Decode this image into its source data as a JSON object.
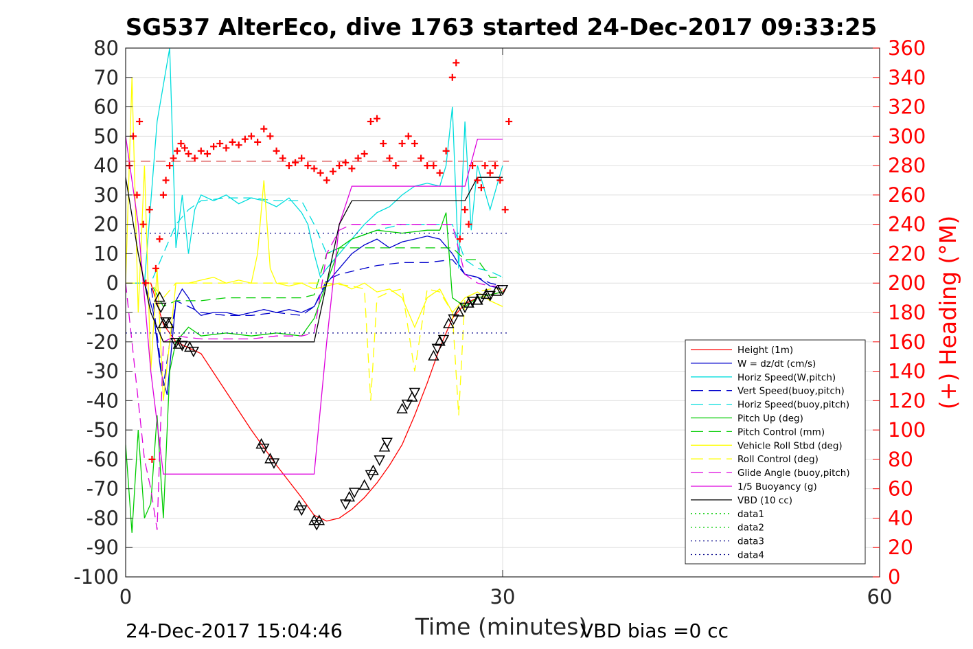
{
  "chart_data": {
    "type": "line",
    "title": "SG537 AlterEco, dive 1763 started 24-Dec-2017 09:33:25",
    "xlabel": "Time (minutes)",
    "ylabel": "",
    "ylabel_right": "(+) Heading (°M)",
    "xlim": [
      0,
      60
    ],
    "ylim": [
      -100,
      80
    ],
    "ylim_right": [
      0,
      360
    ],
    "xticks": [
      "0",
      "30",
      "60"
    ],
    "yticks": [
      "80",
      "70",
      "60",
      "50",
      "40",
      "30",
      "20",
      "10",
      "0",
      "-10",
      "-20",
      "-30",
      "-40",
      "-50",
      "-60",
      "-70",
      "-80",
      "-90",
      "-100"
    ],
    "yticks_right": [
      "360",
      "340",
      "320",
      "300",
      "280",
      "260",
      "240",
      "220",
      "200",
      "180",
      "160",
      "140",
      "120",
      "100",
      "80",
      "60",
      "40",
      "20",
      "0"
    ],
    "grid": true,
    "legend_position": "lower-right",
    "footer_left": "24-Dec-2017 15:04:46",
    "footer_right": "VBD bias =0 cc",
    "colors": {
      "axes": "#262626",
      "grid": "#dfdfdf",
      "heading": "#ff0000",
      "height": "#ff0000",
      "w": "#0000cc",
      "horiz_w": "#00dddd",
      "vert_buoy": "#0000cc",
      "horiz_buoy": "#00dddd",
      "pitch": "#00cc00",
      "pitch_control": "#00cc00",
      "roll": "#ffff00",
      "roll_control": "#ffff00",
      "glide": "#dd00dd",
      "buoyancy": "#dd00dd",
      "vbd": "#000000",
      "data_green": "#00cc00",
      "data_blue": "#000088"
    },
    "series": [
      {
        "name": "Height (1m)",
        "style": "solid",
        "color": "#ff0000",
        "x": [
          0,
          2,
          3,
          4,
          5,
          6,
          8,
          10,
          12,
          14,
          15,
          16,
          17,
          18,
          19,
          20,
          21,
          22,
          23,
          24,
          25,
          26,
          27,
          28,
          29,
          30,
          30.2
        ],
        "y": [
          0,
          0,
          -14,
          -20,
          -22,
          -24,
          -37,
          -50,
          -62,
          -73,
          -79,
          -81,
          -80,
          -77,
          -73,
          -68,
          -62,
          -55,
          -45,
          -34,
          -22,
          -12,
          -7,
          -5,
          -4,
          -3,
          -2
        ]
      },
      {
        "name": "W = dz/dt (cm/s)",
        "style": "solid",
        "color": "#0000cc",
        "x": [
          0,
          1.5,
          2.2,
          2.8,
          3.3,
          4,
          4.5,
          5,
          5.5,
          6,
          7,
          8,
          9,
          10,
          11,
          12,
          13,
          14,
          15,
          16,
          17,
          18,
          19,
          20,
          21,
          22,
          23,
          24,
          25,
          26,
          27,
          28,
          29,
          30
        ],
        "y": [
          0,
          0,
          -10,
          -30,
          -38,
          -6,
          -2,
          -5,
          -9,
          -11,
          -10,
          -10,
          -11,
          -10,
          -9,
          -10,
          -9,
          -10,
          -8,
          0,
          5,
          10,
          13,
          15,
          12,
          14,
          15,
          16,
          15,
          10,
          3,
          2,
          -1,
          -2
        ]
      },
      {
        "name": "Horiz Speed(W,pitch)",
        "style": "solid",
        "color": "#00dddd",
        "x": [
          0,
          1.5,
          2.5,
          3.5,
          4,
          4.5,
          5,
          5.5,
          6,
          7,
          8,
          9,
          10,
          11,
          12,
          13,
          14,
          14.5,
          15,
          15.5,
          16,
          17,
          18,
          19,
          20,
          21,
          22,
          23,
          24,
          25,
          25.5,
          26,
          26.5,
          27,
          27.5,
          28,
          29,
          30
        ],
        "y": [
          0,
          0,
          55,
          80,
          12,
          30,
          10,
          25,
          30,
          28,
          30,
          27,
          29,
          28,
          26,
          29,
          24,
          20,
          10,
          2,
          5,
          10,
          15,
          20,
          24,
          26,
          30,
          33,
          34,
          33,
          40,
          60,
          5,
          55,
          18,
          40,
          25,
          40
        ]
      },
      {
        "name": "Vert Speed(buoy,pitch)",
        "style": "dashed",
        "color": "#0000cc",
        "x": [
          0,
          2,
          3,
          4,
          5,
          6,
          8,
          10,
          12,
          14,
          15,
          16,
          17,
          18,
          19,
          20,
          22,
          24,
          26,
          27,
          28,
          29,
          30
        ],
        "y": [
          0,
          0,
          -35,
          -6,
          -8,
          -10,
          -11,
          -11,
          -10,
          -11,
          -8,
          1,
          3,
          4,
          5,
          6,
          7,
          7,
          8,
          3,
          2,
          0,
          -1
        ]
      },
      {
        "name": "Horiz Speed(buoy,pitch)",
        "style": "dashed",
        "color": "#00dddd",
        "x": [
          0,
          2,
          3,
          4,
          5,
          6,
          8,
          10,
          12,
          14,
          15,
          16,
          17,
          18,
          20,
          22,
          24,
          26,
          27,
          28,
          29,
          30
        ],
        "y": [
          0,
          0,
          10,
          20,
          25,
          28,
          29,
          29,
          28,
          28,
          20,
          10,
          12,
          15,
          18,
          20,
          20,
          20,
          8,
          5,
          4,
          2
        ]
      },
      {
        "name": "Pitch Up (deg)",
        "style": "solid",
        "color": "#00cc00",
        "x": [
          0,
          0.5,
          1,
          1.5,
          2,
          2.5,
          3,
          3.5,
          4,
          5,
          6,
          8,
          10,
          12,
          14,
          15,
          16,
          17,
          18,
          20,
          22,
          24,
          25,
          25.5,
          26,
          27,
          28,
          29,
          30
        ],
        "y": [
          -55,
          -85,
          -50,
          -80,
          -75,
          -45,
          -80,
          -30,
          -20,
          -15,
          -18,
          -17,
          -18,
          -17,
          -18,
          -12,
          0,
          12,
          15,
          18,
          17,
          18,
          18,
          24,
          -5,
          -8,
          -5,
          -4,
          -3
        ]
      },
      {
        "name": "Pitch Control (mm)",
        "style": "dashed",
        "color": "#00cc00",
        "x": [
          0,
          2,
          3,
          4,
          6,
          8,
          10,
          12,
          14,
          15,
          16,
          17,
          18,
          20,
          22,
          24,
          26,
          27,
          28,
          29,
          30
        ],
        "y": [
          0,
          0,
          -8,
          -6,
          -6,
          -5,
          -5,
          -5,
          -5,
          -4,
          10,
          12,
          12,
          12,
          12,
          12,
          12,
          8,
          8,
          2,
          2
        ]
      },
      {
        "name": "Vehicle Roll Stbd (deg)",
        "style": "solid",
        "color": "#ffff00",
        "x": [
          0,
          0.5,
          1,
          1.5,
          2,
          2.5,
          3,
          3.5,
          4,
          5,
          6,
          7,
          8,
          9,
          10,
          10.5,
          11,
          11.5,
          12,
          13,
          14,
          15,
          16,
          17,
          18,
          19,
          20,
          21,
          22,
          23,
          24,
          25,
          26,
          27,
          28,
          29,
          30
        ],
        "y": [
          0,
          70,
          -10,
          40,
          -30,
          5,
          -40,
          -20,
          0,
          0,
          1,
          2,
          0,
          1,
          0,
          10,
          35,
          5,
          0,
          -1,
          0,
          -2,
          -1,
          0,
          -2,
          0,
          -3,
          -2,
          -5,
          -15,
          -5,
          -2,
          -10,
          -5,
          -3,
          -6,
          -8
        ]
      },
      {
        "name": "Roll Control (deg)",
        "style": "dashed",
        "color": "#ffff00",
        "x": [
          0,
          2,
          3,
          4,
          6,
          8,
          10,
          12,
          14,
          16,
          18,
          19,
          19.5,
          20,
          21,
          22,
          23,
          24,
          25,
          26,
          26.5,
          27,
          28,
          29,
          30
        ],
        "y": [
          0,
          0,
          -5,
          0,
          0,
          0,
          0,
          0,
          0,
          0,
          -1,
          -2,
          -40,
          -5,
          -3,
          -2,
          -30,
          -2,
          -3,
          -10,
          -45,
          -5,
          -3,
          -2,
          -2
        ]
      },
      {
        "name": "Glide Angle (buoy,pitch)",
        "style": "dashed",
        "color": "#dd00dd",
        "x": [
          0,
          1,
          1.5,
          2,
          2.5,
          3,
          4,
          6,
          8,
          10,
          12,
          14,
          15,
          16,
          17,
          18,
          20,
          22,
          24,
          26,
          27,
          28,
          29,
          30
        ],
        "y": [
          0,
          -40,
          -60,
          -70,
          -84,
          -20,
          -18,
          -19,
          -19,
          -19,
          -18,
          -18,
          -17,
          10,
          18,
          20,
          20,
          20,
          20,
          20,
          3,
          0,
          -1,
          -1
        ]
      },
      {
        "name": "1/5 Buoyancy (g)",
        "style": "solid",
        "color": "#dd00dd",
        "x": [
          0,
          1,
          2,
          3,
          3.5,
          5,
          8,
          10,
          12,
          14,
          15,
          16,
          17,
          18,
          20,
          22,
          24,
          26,
          27,
          28,
          30
        ],
        "y": [
          50,
          20,
          -30,
          -65,
          -65,
          -65,
          -65,
          -65,
          -65,
          -65,
          -65,
          -20,
          20,
          33,
          33,
          33,
          33,
          33,
          33,
          49,
          49
        ]
      },
      {
        "name": "VBD (10 cc)",
        "style": "solid",
        "color": "#000000",
        "x": [
          0,
          1,
          2,
          3,
          4,
          6,
          8,
          10,
          12,
          14,
          15,
          16,
          17,
          18,
          20,
          22,
          24,
          26,
          27,
          28,
          30
        ],
        "y": [
          36,
          10,
          -10,
          -20,
          -20,
          -20,
          -20,
          -20,
          -20,
          -20,
          -20,
          0,
          20,
          28,
          28,
          28,
          28,
          28,
          28,
          36,
          36
        ]
      },
      {
        "name": "data1",
        "style": "dotted",
        "color": "#00cc00",
        "x": [],
        "y": []
      },
      {
        "name": "data2",
        "style": "dotted",
        "color": "#00cc00",
        "x": [],
        "y": []
      },
      {
        "name": "data3",
        "style": "dotted",
        "color": "#000088",
        "x": [
          0,
          30.5
        ],
        "y": [
          17,
          17
        ]
      },
      {
        "name": "data4",
        "style": "dotted",
        "color": "#000088",
        "x": [
          0,
          30.5
        ],
        "y": [
          -17,
          -17
        ]
      }
    ],
    "heading_mean": 283,
    "heading_points": {
      "x": [
        0.3,
        0.6,
        0.9,
        1.1,
        1.4,
        1.6,
        1.9,
        2.1,
        2.4,
        2.7,
        3.0,
        3.2,
        3.5,
        3.8,
        4.1,
        4.4,
        4.7,
        5.0,
        5.5,
        6,
        6.5,
        7,
        7.5,
        8,
        8.5,
        9,
        9.5,
        10,
        10.5,
        11,
        11.5,
        12,
        12.5,
        13,
        13.5,
        14,
        14.5,
        15,
        15.5,
        16,
        16.5,
        17,
        17.5,
        18,
        18.5,
        19,
        19.5,
        20,
        20.5,
        21,
        21.5,
        22,
        22.5,
        23,
        23.5,
        24,
        24.5,
        25,
        25.5,
        26,
        26.3,
        26.6,
        27,
        27.3,
        27.6,
        28,
        28.3,
        28.6,
        29,
        29.4,
        29.8,
        30.2,
        30.5
      ],
      "y": [
        280,
        300,
        260,
        310,
        240,
        200,
        250,
        80,
        210,
        230,
        260,
        270,
        280,
        285,
        290,
        295,
        292,
        288,
        285,
        290,
        288,
        293,
        295,
        292,
        296,
        294,
        298,
        300,
        296,
        305,
        300,
        290,
        285,
        280,
        282,
        285,
        280,
        278,
        275,
        270,
        276,
        280,
        282,
        278,
        285,
        288,
        310,
        312,
        295,
        285,
        280,
        295,
        300,
        295,
        285,
        280,
        280,
        275,
        290,
        340,
        350,
        230,
        250,
        240,
        280,
        270,
        265,
        280,
        275,
        280,
        270,
        250,
        310
      ]
    },
    "markers": {
      "x": [
        2.7,
        2.8,
        3.0,
        3.2,
        3.4,
        4.0,
        4.2,
        4.5,
        5.1,
        5.4,
        10.8,
        11.0,
        11.5,
        11.8,
        13.8,
        14.0,
        15.0,
        15.2,
        15.4,
        17.5,
        17.8,
        18.2,
        19.0,
        19.5,
        19.7,
        20.2,
        20.6,
        20.8,
        22.0,
        22.4,
        22.8,
        23.0,
        24.5,
        24.8,
        25.0,
        25.3,
        25.7,
        26.1,
        26.5,
        27.0,
        27.3,
        27.6,
        28.0,
        28.3,
        28.7,
        29.0,
        29.5,
        30.0
      ],
      "y": [
        -5,
        -8,
        -14,
        -13,
        -14,
        -20,
        -21,
        -21,
        -22,
        -23,
        -55,
        -56,
        -60,
        -61,
        -76,
        -77,
        -81,
        -82,
        -81,
        -75,
        -73,
        -71,
        -69,
        -65,
        -64,
        -60,
        -56,
        -54,
        -43,
        -41,
        -39,
        -37,
        -25,
        -22,
        -20,
        -19,
        -14,
        -12,
        -10,
        -8,
        -7,
        -6,
        -6,
        -5,
        -4,
        -4,
        -3,
        -2
      ]
    }
  },
  "legend": {
    "items": [
      {
        "label": "Height (1m)",
        "color": "#ff0000",
        "style": "solid"
      },
      {
        "label": "W = dz/dt (cm/s)",
        "color": "#0000cc",
        "style": "solid"
      },
      {
        "label": "Horiz Speed(W,pitch)",
        "color": "#00dddd",
        "style": "solid"
      },
      {
        "label": "Vert Speed(buoy,pitch)",
        "color": "#0000cc",
        "style": "dashed"
      },
      {
        "label": "Horiz Speed(buoy,pitch)",
        "color": "#00dddd",
        "style": "dashed"
      },
      {
        "label": "Pitch Up (deg)",
        "color": "#00cc00",
        "style": "solid"
      },
      {
        "label": "Pitch Control (mm)",
        "color": "#00cc00",
        "style": "dashed"
      },
      {
        "label": "Vehicle Roll Stbd (deg)",
        "color": "#ffff00",
        "style": "solid"
      },
      {
        "label": "Roll Control (deg)",
        "color": "#ffff00",
        "style": "dashed"
      },
      {
        "label": "Glide Angle (buoy,pitch)",
        "color": "#dd00dd",
        "style": "dashed"
      },
      {
        "label": "1/5 Buoyancy (g)",
        "color": "#dd00dd",
        "style": "solid"
      },
      {
        "label": "VBD (10 cc)",
        "color": "#000000",
        "style": "solid"
      },
      {
        "label": "data1",
        "color": "#00cc00",
        "style": "dotted"
      },
      {
        "label": "data2",
        "color": "#00cc00",
        "style": "dotted"
      },
      {
        "label": "data3",
        "color": "#000088",
        "style": "dotted"
      },
      {
        "label": "data4",
        "color": "#000088",
        "style": "dotted"
      }
    ]
  }
}
